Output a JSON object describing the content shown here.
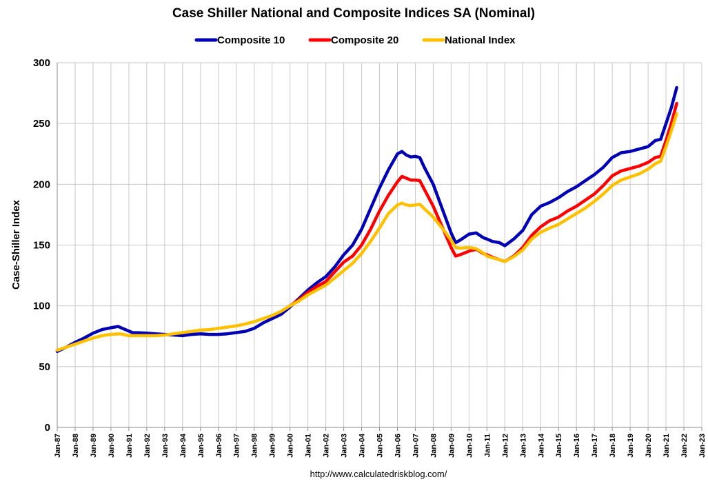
{
  "chart_data": {
    "type": "line",
    "title": "Case Shiller National and Composite Indices SA (Nominal)",
    "ylabel": "Case-Shiller Index",
    "xlabel": "",
    "source": "http://www.calculatedriskblog.com/",
    "ylim": [
      0,
      300
    ],
    "xlim": [
      1987,
      2023
    ],
    "yticks": [
      0,
      50,
      100,
      150,
      200,
      250,
      300
    ],
    "xticks": [
      {
        "year": 1987,
        "label": "Jan-87"
      },
      {
        "year": 1988,
        "label": "Jan-88"
      },
      {
        "year": 1989,
        "label": "Jan-89"
      },
      {
        "year": 1990,
        "label": "Jan-90"
      },
      {
        "year": 1991,
        "label": "Jan-91"
      },
      {
        "year": 1992,
        "label": "Jan-92"
      },
      {
        "year": 1993,
        "label": "Jan-93"
      },
      {
        "year": 1994,
        "label": "Jan-94"
      },
      {
        "year": 1995,
        "label": "Jan-95"
      },
      {
        "year": 1996,
        "label": "Jan-96"
      },
      {
        "year": 1997,
        "label": "Jan-97"
      },
      {
        "year": 1998,
        "label": "Jan-98"
      },
      {
        "year": 1999,
        "label": "Jan-99"
      },
      {
        "year": 2000,
        "label": "Jan-00"
      },
      {
        "year": 2001,
        "label": "Jan-01"
      },
      {
        "year": 2002,
        "label": "Jan-02"
      },
      {
        "year": 2003,
        "label": "Jan-03"
      },
      {
        "year": 2004,
        "label": "Jan-04"
      },
      {
        "year": 2005,
        "label": "Jan-05"
      },
      {
        "year": 2006,
        "label": "Jan-06"
      },
      {
        "year": 2007,
        "label": "Jan-07"
      },
      {
        "year": 2008,
        "label": "Jan-08"
      },
      {
        "year": 2009,
        "label": "Jan-09"
      },
      {
        "year": 2010,
        "label": "Jan-10"
      },
      {
        "year": 2011,
        "label": "Jan-11"
      },
      {
        "year": 2012,
        "label": "Jan-12"
      },
      {
        "year": 2013,
        "label": "Jan-13"
      },
      {
        "year": 2014,
        "label": "Jan-14"
      },
      {
        "year": 2015,
        "label": "Jan-15"
      },
      {
        "year": 2016,
        "label": "Jan-16"
      },
      {
        "year": 2017,
        "label": "Jan-17"
      },
      {
        "year": 2018,
        "label": "Jan-18"
      },
      {
        "year": 2019,
        "label": "Jan-19"
      },
      {
        "year": 2020,
        "label": "Jan-20"
      },
      {
        "year": 2021,
        "label": "Jan-21"
      },
      {
        "year": 2022,
        "label": "Jan-22"
      },
      {
        "year": 2023,
        "label": "Jan-23"
      }
    ],
    "grid": true,
    "legend": "top-center",
    "series": [
      {
        "name": "Composite 10",
        "color": "#0000b4",
        "points": [
          [
            1987.0,
            62.5
          ],
          [
            1987.5,
            66
          ],
          [
            1988.0,
            70
          ],
          [
            1988.5,
            73.5
          ],
          [
            1989.0,
            77.5
          ],
          [
            1989.5,
            80.5
          ],
          [
            1990.0,
            82
          ],
          [
            1990.4,
            83
          ],
          [
            1990.8,
            80.5
          ],
          [
            1991.2,
            78
          ],
          [
            1991.6,
            77.8
          ],
          [
            1992.0,
            77.5
          ],
          [
            1992.5,
            77
          ],
          [
            1993.0,
            76.5
          ],
          [
            1993.5,
            76
          ],
          [
            1994.0,
            75.5
          ],
          [
            1994.5,
            76.5
          ],
          [
            1995.0,
            77
          ],
          [
            1995.5,
            76.5
          ],
          [
            1996.0,
            76.5
          ],
          [
            1996.5,
            77
          ],
          [
            1997.0,
            78
          ],
          [
            1997.5,
            79
          ],
          [
            1998.0,
            81.5
          ],
          [
            1998.5,
            86
          ],
          [
            1999.0,
            89.5
          ],
          [
            1999.5,
            93
          ],
          [
            2000.0,
            99
          ],
          [
            2000.5,
            106
          ],
          [
            2001.0,
            113
          ],
          [
            2001.5,
            119
          ],
          [
            2002.0,
            124
          ],
          [
            2002.5,
            132
          ],
          [
            2003.0,
            142
          ],
          [
            2003.5,
            150
          ],
          [
            2004.0,
            163
          ],
          [
            2004.5,
            180
          ],
          [
            2005.0,
            197
          ],
          [
            2005.5,
            212
          ],
          [
            2006.0,
            225
          ],
          [
            2006.25,
            227
          ],
          [
            2006.5,
            224
          ],
          [
            2006.75,
            222.5
          ],
          [
            2007.0,
            223
          ],
          [
            2007.25,
            222
          ],
          [
            2007.5,
            214
          ],
          [
            2008.0,
            200
          ],
          [
            2008.5,
            180
          ],
          [
            2009.0,
            160
          ],
          [
            2009.25,
            152
          ],
          [
            2009.5,
            154
          ],
          [
            2010.0,
            159
          ],
          [
            2010.4,
            160
          ],
          [
            2010.8,
            156
          ],
          [
            2011.0,
            155
          ],
          [
            2011.3,
            153
          ],
          [
            2011.7,
            152
          ],
          [
            2012.0,
            149.5
          ],
          [
            2012.5,
            155
          ],
          [
            2013.0,
            162
          ],
          [
            2013.5,
            175
          ],
          [
            2014.0,
            182
          ],
          [
            2014.5,
            185
          ],
          [
            2015.0,
            189
          ],
          [
            2015.5,
            194
          ],
          [
            2016.0,
            198
          ],
          [
            2016.5,
            203
          ],
          [
            2017.0,
            208
          ],
          [
            2017.5,
            214
          ],
          [
            2018.0,
            222
          ],
          [
            2018.5,
            226
          ],
          [
            2019.0,
            227
          ],
          [
            2019.5,
            229
          ],
          [
            2020.0,
            231
          ],
          [
            2020.4,
            236
          ],
          [
            2020.7,
            237
          ],
          [
            2021.0,
            250
          ],
          [
            2021.3,
            263
          ],
          [
            2021.6,
            279.5
          ]
        ]
      },
      {
        "name": "Composite 20",
        "color": "#ff0000",
        "points": [
          [
            2000.0,
            100
          ],
          [
            2000.5,
            105
          ],
          [
            2001.0,
            111
          ],
          [
            2001.5,
            116
          ],
          [
            2002.0,
            120
          ],
          [
            2002.5,
            128
          ],
          [
            2003.0,
            136
          ],
          [
            2003.5,
            141
          ],
          [
            2004.0,
            150
          ],
          [
            2004.5,
            163
          ],
          [
            2005.0,
            178
          ],
          [
            2005.5,
            191
          ],
          [
            2006.0,
            202
          ],
          [
            2006.25,
            206.5
          ],
          [
            2006.5,
            205
          ],
          [
            2006.75,
            203.5
          ],
          [
            2007.0,
            203.5
          ],
          [
            2007.25,
            203
          ],
          [
            2007.5,
            196
          ],
          [
            2008.0,
            182
          ],
          [
            2008.5,
            165
          ],
          [
            2009.0,
            148
          ],
          [
            2009.25,
            141
          ],
          [
            2009.5,
            142
          ],
          [
            2010.0,
            145
          ],
          [
            2010.4,
            146.5
          ],
          [
            2010.8,
            143
          ],
          [
            2011.0,
            142
          ],
          [
            2011.3,
            140
          ],
          [
            2011.7,
            138
          ],
          [
            2012.0,
            136.5
          ],
          [
            2012.5,
            141
          ],
          [
            2013.0,
            148
          ],
          [
            2013.5,
            158
          ],
          [
            2014.0,
            165
          ],
          [
            2014.5,
            170
          ],
          [
            2015.0,
            173
          ],
          [
            2015.5,
            178
          ],
          [
            2016.0,
            182
          ],
          [
            2016.5,
            187
          ],
          [
            2017.0,
            192
          ],
          [
            2017.5,
            199
          ],
          [
            2018.0,
            207
          ],
          [
            2018.5,
            211
          ],
          [
            2019.0,
            213
          ],
          [
            2019.5,
            215
          ],
          [
            2020.0,
            218
          ],
          [
            2020.4,
            222
          ],
          [
            2020.7,
            223
          ],
          [
            2021.0,
            236
          ],
          [
            2021.3,
            250
          ],
          [
            2021.6,
            266.5
          ]
        ]
      },
      {
        "name": "National Index",
        "color": "#ffc000",
        "points": [
          [
            1987.0,
            63.5
          ],
          [
            1987.5,
            66
          ],
          [
            1988.0,
            68.5
          ],
          [
            1988.5,
            71
          ],
          [
            1989.0,
            73.5
          ],
          [
            1989.5,
            75.5
          ],
          [
            1990.0,
            76.5
          ],
          [
            1990.5,
            77
          ],
          [
            1991.0,
            75.5
          ],
          [
            1991.5,
            75.5
          ],
          [
            1992.0,
            75.5
          ],
          [
            1992.5,
            75.5
          ],
          [
            1993.0,
            76
          ],
          [
            1993.5,
            77
          ],
          [
            1994.0,
            78
          ],
          [
            1994.5,
            79
          ],
          [
            1995.0,
            80
          ],
          [
            1995.5,
            80.5
          ],
          [
            1996.0,
            81.5
          ],
          [
            1996.5,
            82.5
          ],
          [
            1997.0,
            83.5
          ],
          [
            1997.5,
            85
          ],
          [
            1998.0,
            87
          ],
          [
            1998.5,
            89.5
          ],
          [
            1999.0,
            92
          ],
          [
            1999.5,
            95.5
          ],
          [
            2000.0,
            100
          ],
          [
            2000.5,
            104
          ],
          [
            2001.0,
            109
          ],
          [
            2001.5,
            113
          ],
          [
            2002.0,
            117
          ],
          [
            2002.5,
            123
          ],
          [
            2003.0,
            129
          ],
          [
            2003.5,
            135
          ],
          [
            2004.0,
            143
          ],
          [
            2004.5,
            153
          ],
          [
            2005.0,
            164
          ],
          [
            2005.5,
            176
          ],
          [
            2006.0,
            183
          ],
          [
            2006.25,
            184.5
          ],
          [
            2006.5,
            183
          ],
          [
            2006.75,
            182.5
          ],
          [
            2007.0,
            183
          ],
          [
            2007.25,
            183.5
          ],
          [
            2007.5,
            180
          ],
          [
            2008.0,
            173
          ],
          [
            2008.5,
            164
          ],
          [
            2009.0,
            154
          ],
          [
            2009.25,
            148
          ],
          [
            2009.5,
            147.5
          ],
          [
            2010.0,
            148
          ],
          [
            2010.4,
            147
          ],
          [
            2010.8,
            143.5
          ],
          [
            2011.0,
            141
          ],
          [
            2011.3,
            139.5
          ],
          [
            2011.7,
            138
          ],
          [
            2012.0,
            136.5
          ],
          [
            2012.5,
            140.5
          ],
          [
            2013.0,
            146
          ],
          [
            2013.5,
            155
          ],
          [
            2014.0,
            160.5
          ],
          [
            2014.5,
            164
          ],
          [
            2015.0,
            167
          ],
          [
            2015.5,
            171.5
          ],
          [
            2016.0,
            176
          ],
          [
            2016.5,
            180.5
          ],
          [
            2017.0,
            186
          ],
          [
            2017.5,
            192
          ],
          [
            2018.0,
            199
          ],
          [
            2018.5,
            203.5
          ],
          [
            2019.0,
            206
          ],
          [
            2019.5,
            208.5
          ],
          [
            2020.0,
            212.5
          ],
          [
            2020.4,
            217
          ],
          [
            2020.7,
            219
          ],
          [
            2021.0,
            231
          ],
          [
            2021.3,
            244
          ],
          [
            2021.6,
            258
          ]
        ]
      }
    ]
  }
}
